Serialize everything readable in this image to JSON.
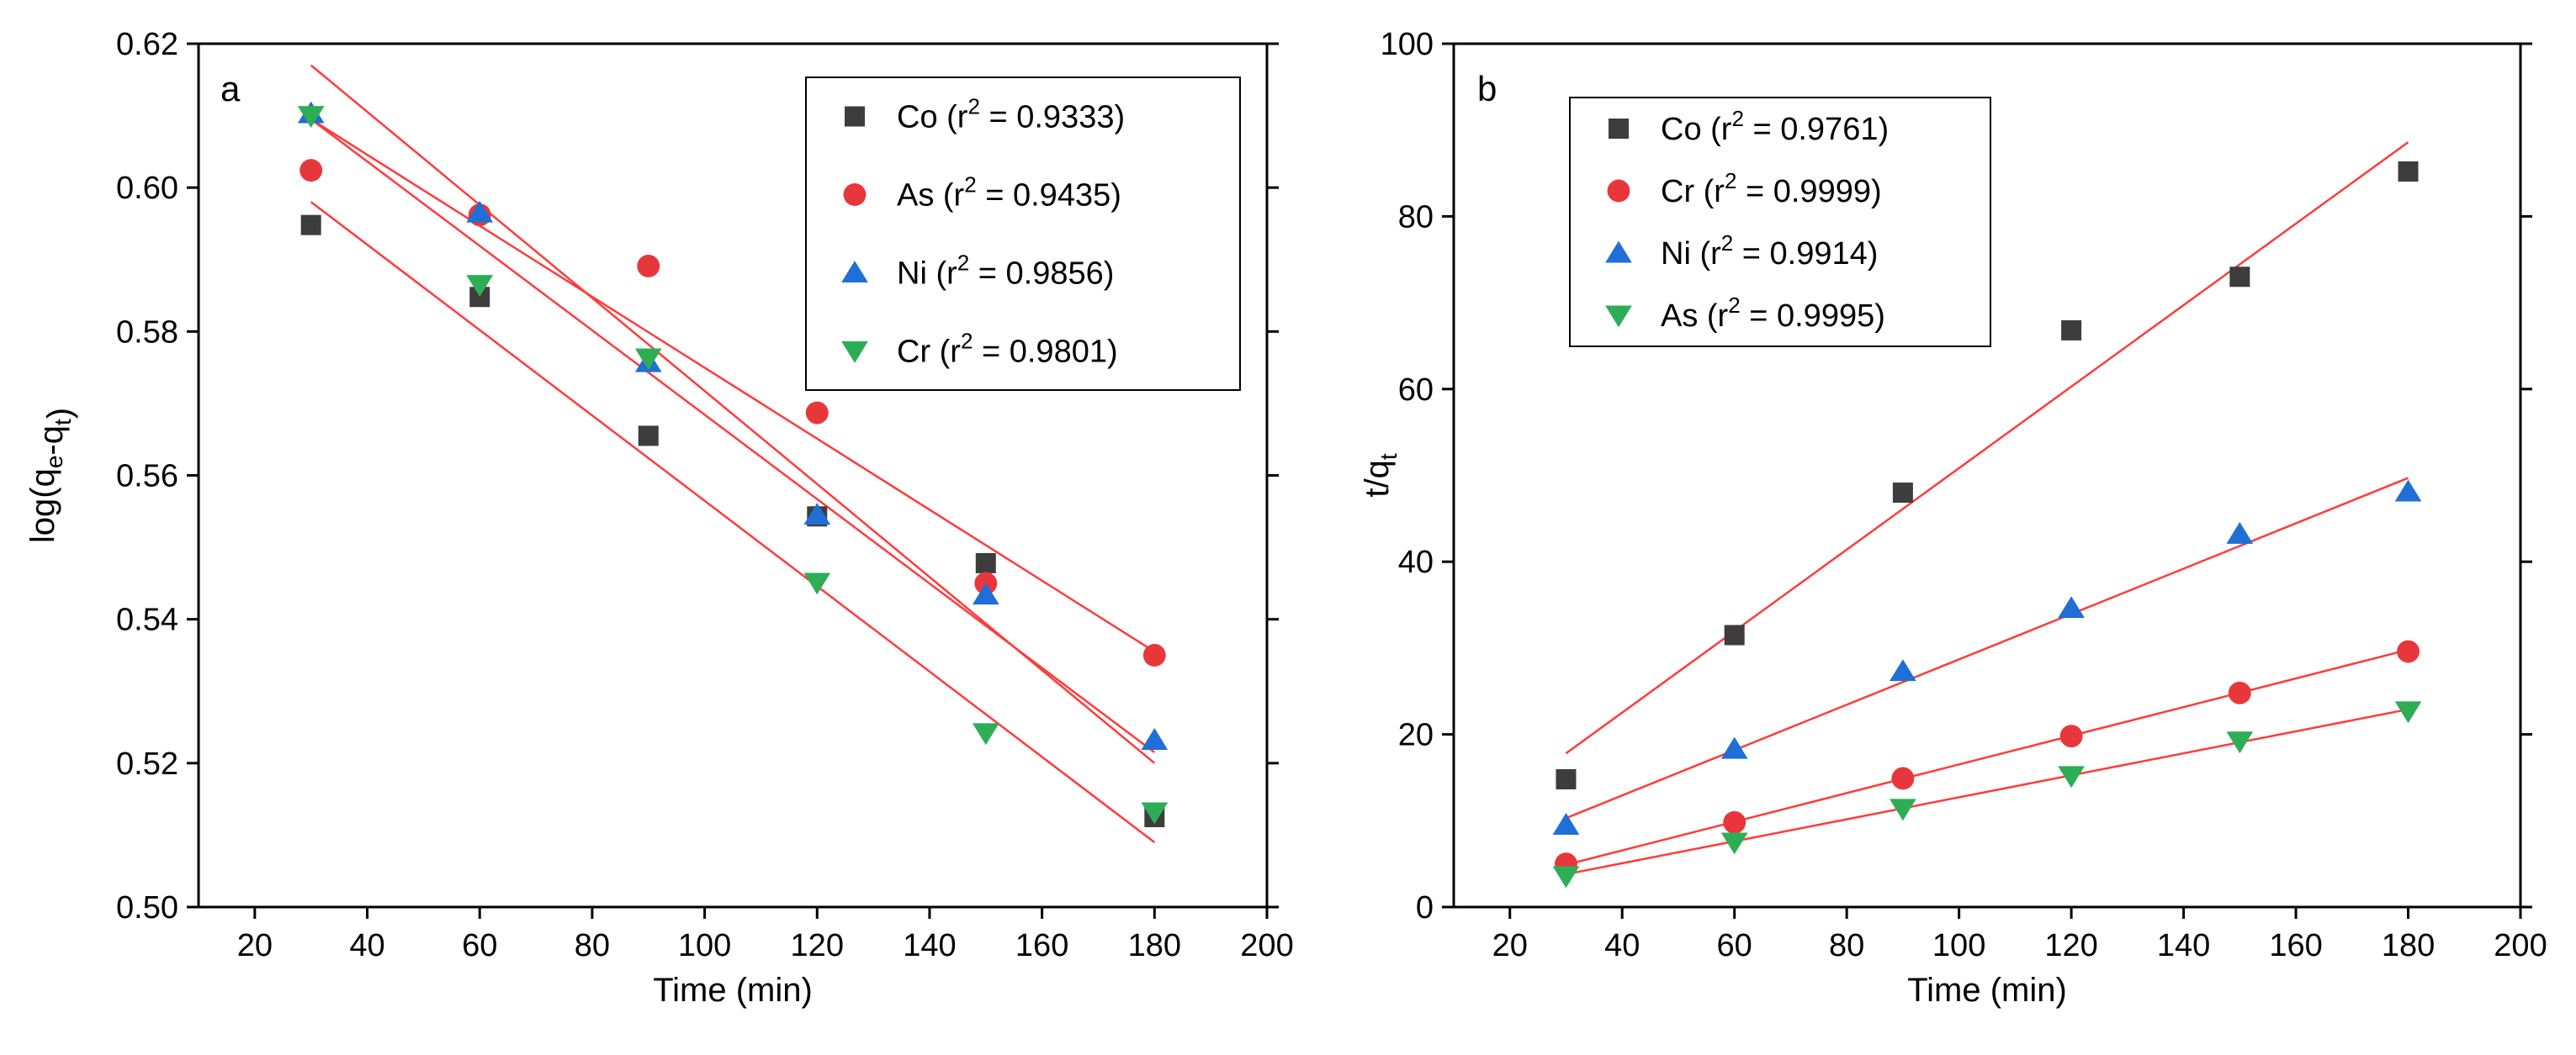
{
  "chart_data": [
    {
      "type": "scatter",
      "panel_label": "a",
      "xlabel": "Time (min)",
      "ylabel": "log(q_e-q_t)",
      "xlim": [
        10,
        200
      ],
      "ylim": [
        0.5,
        0.62
      ],
      "xticks": [
        20,
        40,
        60,
        80,
        100,
        120,
        140,
        160,
        180,
        200
      ],
      "yticks": [
        0.5,
        0.52,
        0.54,
        0.56,
        0.58,
        0.6,
        0.62
      ],
      "y_decimals": 2,
      "legend_position": "top-right",
      "x": [
        30,
        60,
        90,
        120,
        150,
        180
      ],
      "series": [
        {
          "name": "Co",
          "r2": "0.9333",
          "marker": "square",
          "color": "#3d3d3d",
          "values": [
            0.5948,
            0.5848,
            0.5655,
            0.5543,
            0.5478,
            0.5125
          ],
          "fit": [
            0.598,
            0.509
          ]
        },
        {
          "name": "As",
          "r2": "0.9435",
          "marker": "circle",
          "color": "#e8373b",
          "values": [
            0.6024,
            0.5962,
            0.5891,
            0.5687,
            0.545,
            0.535
          ],
          "fit": [
            0.6095,
            0.5355
          ]
        },
        {
          "name": "Ni",
          "r2": "0.9856",
          "marker": "triangle-up",
          "color": "#1f6fd6",
          "values": [
            0.6103,
            0.5965,
            0.5757,
            0.5545,
            0.5434,
            0.5232
          ],
          "fit": [
            0.6095,
            0.5215
          ]
        },
        {
          "name": "Cr",
          "r2": "0.9801",
          "marker": "triangle-down",
          "color": "#2dae55",
          "values": [
            0.61,
            0.5865,
            0.5763,
            0.5451,
            0.5242,
            0.5132
          ],
          "fit": [
            0.617,
            0.52
          ]
        }
      ]
    },
    {
      "type": "scatter",
      "panel_label": "b",
      "xlabel": "Time (min)",
      "ylabel": "t/q_t",
      "xlim": [
        10,
        200
      ],
      "ylim": [
        0,
        100
      ],
      "xticks": [
        20,
        40,
        60,
        80,
        100,
        120,
        140,
        160,
        180,
        200
      ],
      "yticks": [
        0,
        20,
        40,
        60,
        80,
        100
      ],
      "y_decimals": 0,
      "legend_position": "top-left",
      "x": [
        30,
        60,
        90,
        120,
        150,
        180
      ],
      "series": [
        {
          "name": "Co",
          "r2": "0.9761",
          "marker": "square",
          "color": "#3d3d3d",
          "values": [
            14.8,
            31.5,
            48.0,
            66.8,
            73.0,
            85.2
          ],
          "fit": [
            17.8,
            88.6
          ]
        },
        {
          "name": "Cr",
          "r2": "0.9999",
          "marker": "circle",
          "color": "#e8373b",
          "values": [
            5.0,
            9.8,
            14.9,
            19.8,
            24.8,
            29.6
          ],
          "fit": [
            4.9,
            29.8
          ]
        },
        {
          "name": "Ni",
          "r2": "0.9914",
          "marker": "triangle-up",
          "color": "#1f6fd6",
          "values": [
            9.5,
            18.3,
            27.3,
            34.6,
            43.2,
            48.1
          ],
          "fit": [
            10.3,
            49.7
          ]
        },
        {
          "name": "As",
          "r2": "0.9995",
          "marker": "triangle-down",
          "color": "#2dae55",
          "values": [
            3.6,
            7.5,
            11.4,
            15.2,
            19.2,
            22.7
          ],
          "fit": [
            3.8,
            22.9
          ]
        }
      ]
    }
  ]
}
